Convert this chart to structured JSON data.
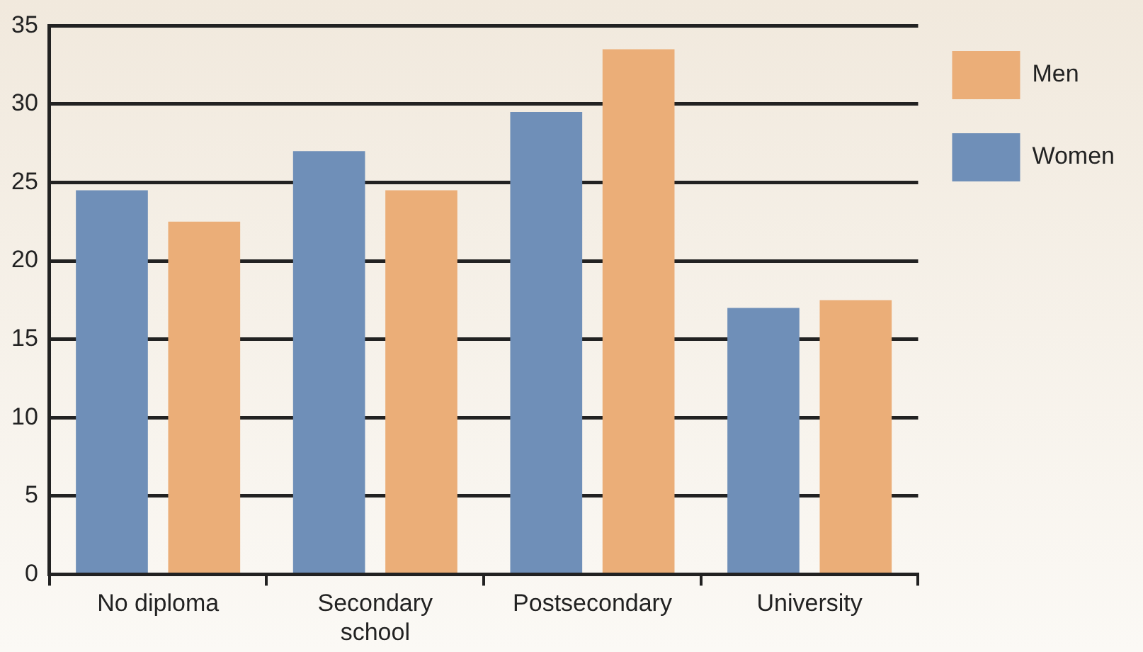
{
  "chart_data": {
    "type": "bar",
    "categories": [
      "No diploma",
      "Secondary school",
      "Postsecondary",
      "University"
    ],
    "series": [
      {
        "name": "Women",
        "color": "#6f8fb8",
        "values": [
          24.5,
          27,
          29.5,
          17
        ]
      },
      {
        "name": "Men",
        "color": "#ebae78",
        "values": [
          22.5,
          24.5,
          33.5,
          17.5
        ]
      }
    ],
    "ylim": [
      0,
      35
    ],
    "yticks": [
      0,
      5,
      10,
      15,
      20,
      25,
      30,
      35
    ],
    "grid": "y",
    "legend": "right"
  }
}
